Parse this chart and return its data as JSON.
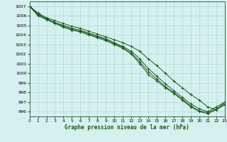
{
  "title": "Graphe pression niveau de la mer (hPa)",
  "bg_color": "#d6f0f0",
  "grid_color": "#b0d8d8",
  "line_color": "#1a5c1a",
  "ylim": [
    995.5,
    1007.5
  ],
  "xlim": [
    0,
    23
  ],
  "yticks": [
    996,
    997,
    998,
    999,
    1000,
    1001,
    1002,
    1003,
    1004,
    1005,
    1006,
    1007
  ],
  "xticks": [
    0,
    1,
    2,
    3,
    4,
    5,
    6,
    7,
    8,
    9,
    10,
    11,
    12,
    13,
    14,
    15,
    16,
    17,
    18,
    19,
    20,
    21,
    22,
    23
  ],
  "series": [
    [
      1007.0,
      1006.3,
      1005.8,
      1005.5,
      1005.2,
      1004.9,
      1004.7,
      1004.4,
      1004.1,
      1003.8,
      1003.5,
      1003.2,
      1002.8,
      1002.3,
      1001.5,
      1000.8,
      1000.0,
      999.2,
      998.5,
      997.8,
      997.2,
      996.5,
      996.2,
      997.0
    ],
    [
      1007.0,
      1006.2,
      1005.7,
      1005.3,
      1005.0,
      1004.7,
      1004.5,
      1004.2,
      1003.9,
      1003.6,
      1003.2,
      1002.8,
      1002.3,
      1001.5,
      1000.5,
      999.7,
      998.9,
      998.2,
      997.5,
      996.8,
      996.3,
      996.0,
      996.5,
      997.0
    ],
    [
      1007.0,
      1006.1,
      1005.7,
      1005.3,
      1004.9,
      1004.6,
      1004.4,
      1004.1,
      1003.8,
      1003.5,
      1003.1,
      1002.7,
      1002.1,
      1001.2,
      1000.2,
      999.4,
      998.6,
      998.0,
      997.3,
      996.6,
      996.1,
      995.9,
      996.3,
      996.8
    ],
    [
      1007.0,
      1006.0,
      1005.6,
      1005.2,
      1004.8,
      1004.5,
      1004.3,
      1004.0,
      1003.7,
      1003.4,
      1003.0,
      1002.6,
      1002.0,
      1001.0,
      999.9,
      999.2,
      998.5,
      997.9,
      997.2,
      996.5,
      996.0,
      995.8,
      996.2,
      996.7
    ]
  ]
}
